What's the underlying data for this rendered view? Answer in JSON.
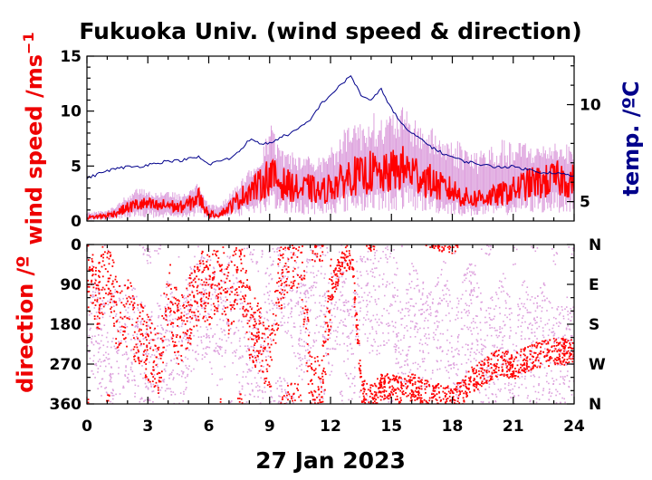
{
  "chart_data": [
    {
      "type": "line",
      "title": "Fukuoka Univ. (wind speed & direction)",
      "ylabel": "wind speed /ms",
      "ylabel_sup": "−1",
      "y2label": "temp. /ºC",
      "xlabel": "27 Jan 2023",
      "xlim": [
        0,
        24
      ],
      "ylim": [
        0,
        15
      ],
      "y2lim": [
        4,
        12.5
      ],
      "x_ticks": [
        "0",
        "3",
        "6",
        "9",
        "12",
        "15",
        "18",
        "21",
        "24"
      ],
      "y_ticks": [
        "0",
        "5",
        "10",
        "15"
      ],
      "y2_ticks": [
        "5",
        "10"
      ],
      "x": [
        0,
        0.5,
        1,
        1.5,
        2,
        2.5,
        3,
        3.5,
        4,
        4.5,
        5,
        5.5,
        6,
        6.5,
        7,
        7.5,
        8,
        8.5,
        9,
        9.5,
        10,
        10.5,
        11,
        11.5,
        12,
        12.5,
        13,
        13.5,
        14,
        14.5,
        15,
        15.5,
        16,
        16.5,
        17,
        17.5,
        18,
        18.5,
        19,
        19.5,
        20,
        20.5,
        21,
        21.5,
        22,
        22.5,
        23,
        23.5,
        24
      ],
      "series": [
        {
          "color": "#ff0000",
          "values": [
            0.3,
            0.4,
            0.5,
            0.8,
            1.2,
            1.5,
            1.5,
            1.3,
            1.5,
            1.2,
            1.5,
            2.2,
            0.6,
            0.6,
            1.2,
            2.0,
            2.8,
            3.2,
            4.2,
            3.5,
            3.2,
            2.8,
            3.0,
            2.5,
            3.2,
            3.5,
            4.2,
            4.0,
            4.5,
            4.0,
            4.5,
            4.8,
            4.5,
            4.0,
            3.5,
            3.0,
            2.8,
            2.2,
            2.0,
            2.2,
            2.2,
            2.5,
            2.8,
            3.2,
            3.5,
            3.5,
            3.8,
            3.8,
            3.6
          ]
        },
        {
          "color": "#dda0dd",
          "values": [
            0.8,
            0.9,
            1.0,
            1.5,
            2.5,
            3.0,
            2.8,
            2.6,
            2.8,
            2.5,
            2.8,
            3.5,
            1.5,
            1.5,
            2.5,
            3.5,
            4.8,
            5.5,
            9.0,
            7.0,
            6.5,
            6.0,
            6.5,
            6.0,
            7.0,
            7.5,
            10.0,
            9.0,
            10.0,
            9.5,
            10.0,
            10.5,
            9.5,
            9.0,
            8.5,
            8.0,
            7.5,
            7.5,
            6.5,
            7.0,
            7.0,
            7.5,
            7.0,
            7.5,
            7.0,
            7.0,
            7.5,
            7.0,
            7.0
          ]
        },
        {
          "color": "#00008b",
          "axis": "temp",
          "values": [
            6.2,
            6.4,
            6.6,
            6.7,
            6.8,
            6.8,
            6.9,
            7.0,
            7.1,
            7.1,
            7.2,
            7.3,
            6.9,
            7.1,
            7.2,
            7.6,
            8.2,
            8.0,
            8.0,
            8.3,
            8.5,
            8.8,
            9.2,
            10.0,
            10.5,
            11.0,
            11.5,
            10.5,
            10.2,
            10.8,
            9.8,
            9.0,
            8.5,
            8.2,
            7.8,
            7.5,
            7.3,
            7.1,
            7.0,
            6.9,
            6.8,
            6.8,
            6.8,
            6.7,
            6.6,
            6.5,
            6.5,
            6.4,
            6.3
          ]
        }
      ]
    },
    {
      "type": "scatter",
      "ylabel": "direction /º",
      "xlim": [
        0,
        24
      ],
      "ylim": [
        0,
        360
      ],
      "y_ticks": [
        "0",
        "90",
        "180",
        "270",
        "360"
      ],
      "y2_ticks": [
        "N",
        "E",
        "S",
        "W",
        "N"
      ],
      "x_ticks": [
        "0",
        "3",
        "6",
        "9",
        "12",
        "15",
        "18",
        "21",
        "24"
      ],
      "x": [
        0,
        0.5,
        1,
        1.5,
        2,
        2.5,
        3,
        3.5,
        4,
        4.5,
        5,
        5.5,
        6,
        6.5,
        7,
        7.5,
        8,
        8.5,
        9,
        9.5,
        10,
        10.5,
        11,
        11.5,
        12,
        12.5,
        13,
        13.5,
        14,
        14.5,
        15,
        15.5,
        16,
        16.5,
        17,
        17.5,
        18,
        18.5,
        19,
        19.5,
        20,
        20.5,
        21,
        21.5,
        22,
        22.5,
        23,
        23.5,
        24
      ],
      "series": [
        {
          "color": "#ff0000",
          "values": [
            60,
            120,
            40,
            170,
            150,
            200,
            240,
            260,
            110,
            200,
            150,
            90,
            100,
            60,
            130,
            40,
            180,
            220,
            260,
            70,
            20,
            30,
            310,
            340,
            100,
            40,
            20,
            330,
            345,
            320,
            320,
            330,
            320,
            330,
            340,
            345,
            350,
            330,
            300,
            290,
            270,
            265,
            275,
            260,
            250,
            245,
            240,
            240,
            245
          ]
        },
        {
          "color": "#dda0dd",
          "values": [
            150,
            200,
            250,
            220,
            180,
            240,
            280,
            250,
            200,
            260,
            180,
            120,
            150,
            200,
            100,
            220,
            260,
            300,
            100,
            60,
            80,
            200,
            120,
            60,
            180,
            90,
            270,
            60,
            150,
            120,
            90,
            250,
            160,
            200,
            230,
            120,
            260,
            200,
            150,
            270,
            240,
            180,
            290,
            200,
            250,
            210,
            280,
            230,
            260
          ]
        }
      ]
    }
  ]
}
